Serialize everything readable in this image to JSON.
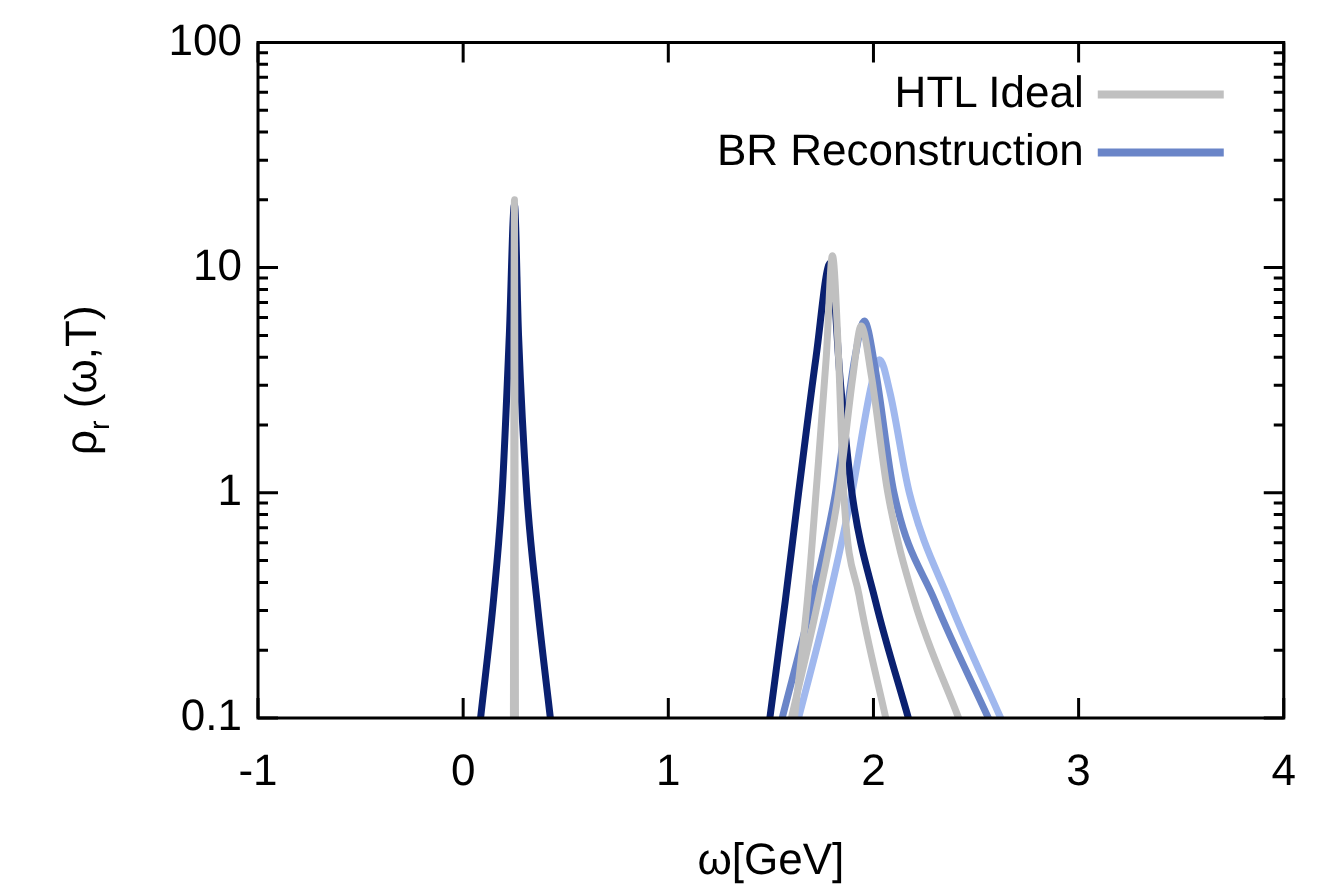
{
  "chart_data": {
    "type": "line",
    "xlabel": "ω[GeV]",
    "ylabel": "ρ$_{r}$ (ω,T)",
    "log": "y",
    "legend": "top right",
    "marker": "none",
    "line_style": "solid",
    "xlim": [
      -1,
      4
    ],
    "xticks": [
      -1,
      0,
      1,
      2,
      3,
      4
    ],
    "ylim": [
      0.1,
      100
    ],
    "yticks": [
      0.1,
      {
        "value": 0.2,
        "label": null
      },
      {
        "value": 0.3,
        "label": null
      },
      {
        "value": 0.4,
        "label": null
      },
      {
        "value": 0.5,
        "label": null
      },
      {
        "value": 0.6,
        "label": null
      },
      {
        "value": 0.7,
        "label": null
      },
      {
        "value": 0.8,
        "label": null
      },
      {
        "value": 0.9,
        "label": null
      },
      1,
      {
        "value": 2,
        "label": null
      },
      {
        "value": 3,
        "label": null
      },
      {
        "value": 4,
        "label": null
      },
      {
        "value": 5,
        "label": null
      },
      {
        "value": 6,
        "label": null
      },
      {
        "value": 7,
        "label": null
      },
      {
        "value": 8,
        "label": null
      },
      {
        "value": 9,
        "label": null
      },
      10,
      {
        "value": 20,
        "label": null
      },
      {
        "value": 30,
        "label": null
      },
      {
        "value": 40,
        "label": null
      },
      {
        "value": 50,
        "label": null
      },
      {
        "value": 60,
        "label": null
      },
      {
        "value": 70,
        "label": null
      },
      {
        "value": 80,
        "label": null
      },
      {
        "value": 90,
        "label": null
      },
      100
    ],
    "series": [
      {
        "name": "HTL Ideal",
        "color": "#c0c0c0",
        "x": [
          0.245,
          0.25,
          0.255
        ],
        "values": [
          0.1,
          20,
          0.1
        ]
      },
      {
        "color": "#c0c0c0",
        "x": [
          1.615,
          1.68,
          1.72,
          1.77,
          1.8,
          1.83,
          1.855,
          1.93,
          2.06
        ],
        "values": [
          0.1,
          0.35,
          1,
          4,
          11.3,
          4,
          1,
          0.35,
          0.1
        ]
      },
      {
        "color": "#c0c0c0",
        "x": [
          1.6,
          1.72,
          1.83,
          1.9,
          1.94,
          1.99,
          2.07,
          2.2,
          2.415
        ],
        "values": [
          0.1,
          0.3,
          1,
          3.3,
          5.5,
          3.3,
          1,
          0.33,
          0.1
        ]
      },
      {
        "color": "#0a2070",
        "x": [
          0.085,
          0.15,
          0.19,
          0.225,
          0.25,
          0.27,
          0.31,
          0.36,
          0.425
        ],
        "values": [
          0.1,
          0.35,
          1,
          5,
          19,
          5,
          1,
          0.33,
          0.1
        ]
      },
      {
        "color": "#0a2070",
        "x": [
          1.495,
          1.57,
          1.635,
          1.72,
          1.79,
          1.84,
          1.895,
          2.01,
          2.17
        ],
        "values": [
          0.1,
          0.33,
          1,
          4,
          10.5,
          3,
          1,
          0.33,
          0.1
        ]
      },
      {
        "name": "BR Reconstruction",
        "color": "#6a85c8",
        "x": [
          1.555,
          1.7,
          1.815,
          1.91,
          1.955,
          2.01,
          2.1,
          2.3,
          2.56
        ],
        "values": [
          0.1,
          0.33,
          1,
          4,
          5.8,
          3.5,
          1,
          0.33,
          0.1
        ]
      },
      {
        "color": "#a0b8ee",
        "x": [
          1.635,
          1.78,
          1.895,
          1.99,
          2.03,
          2.08,
          2.175,
          2.37,
          2.62
        ],
        "values": [
          0.1,
          0.33,
          1,
          3,
          3.9,
          2.8,
          1,
          0.33,
          0.1
        ]
      }
    ]
  }
}
